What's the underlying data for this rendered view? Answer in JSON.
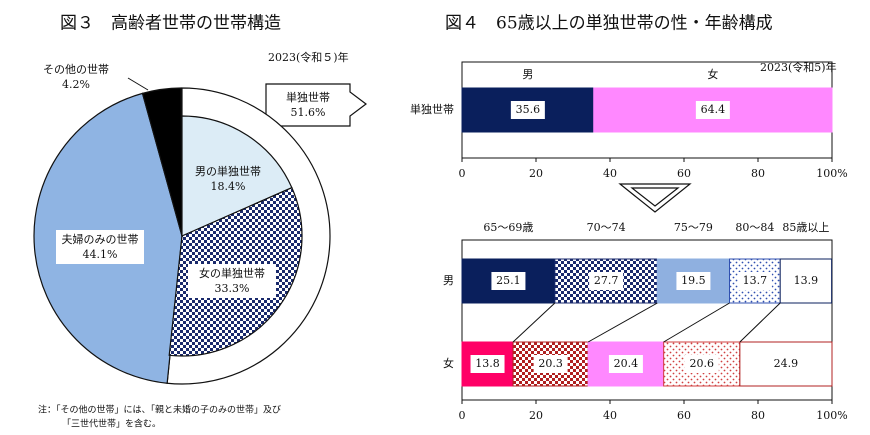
{
  "chart_data": [
    {
      "type": "pie",
      "title": "図３　高齢者世帯の世帯構造",
      "subtitle": "2023(令和５)年",
      "categories": [
        "単独世帯",
        "夫婦のみの世帯",
        "その他の世帯"
      ],
      "values": [
        51.6,
        44.1,
        4.2
      ],
      "value_labels": [
        "51.6%",
        "44.1%",
        "4.2%"
      ],
      "colors": [
        "#ffffff",
        "#8fb4e3",
        "#000000"
      ],
      "breakdown": {
        "categories": [
          "男の単独世帯",
          "女の単独世帯"
        ],
        "values": [
          18.4,
          33.3
        ],
        "value_labels": [
          "18.4%",
          "33.3%"
        ],
        "colors": [
          "#dcecf6",
          "#1a2a6c"
        ],
        "patterns": [
          "solid",
          "check"
        ]
      },
      "note": [
        "注：「その他の世帯」には、「親と未婚の子のみの世帯」及び",
        "「三世代世帯」を含む。"
      ]
    },
    {
      "type": "bar",
      "orientation": "horizontal",
      "stacked": true,
      "title": "図４　65歳以上の単独世帯の性・年齢構成",
      "subtitle": "2023(令和5)年",
      "categories": [
        "単独世帯"
      ],
      "series": [
        {
          "name": "男",
          "colors": [
            "#0a1f5c"
          ],
          "patterns": [
            "solid"
          ],
          "values": [
            35.6
          ]
        },
        {
          "name": "女",
          "colors": [
            "#ff88ff"
          ],
          "patterns": [
            "solid"
          ],
          "values": [
            64.4
          ]
        }
      ],
      "xlim": [
        0,
        100
      ],
      "xticks": [
        0,
        20,
        40,
        60,
        80,
        {
          "value": 100,
          "label": "100%"
        }
      ]
    },
    {
      "type": "bar",
      "orientation": "horizontal",
      "stacked": true,
      "categories": [
        "男",
        "女"
      ],
      "series": [
        {
          "name": "65～69歳",
          "colors": [
            "#0a1f5c",
            "#ff0066"
          ],
          "patterns": [
            "solid",
            "solid"
          ],
          "values": [
            25.1,
            13.8
          ]
        },
        {
          "name": "70～74",
          "colors": [
            "#1a2a6c",
            "#b02020"
          ],
          "patterns": [
            "check",
            "check"
          ],
          "values": [
            27.7,
            20.3
          ]
        },
        {
          "name": "75～79",
          "colors": [
            "#8fb0e0",
            "#ff88ff"
          ],
          "patterns": [
            "solid",
            "solid"
          ],
          "values": [
            19.5,
            20.4
          ]
        },
        {
          "name": "80～84",
          "colors": [
            "#3050b0",
            "#d04040"
          ],
          "patterns": [
            "dots",
            "dots"
          ],
          "values": [
            13.7,
            20.6
          ]
        },
        {
          "name": "85歳以上",
          "colors": [
            "#ffffff",
            "#ffffff"
          ],
          "patterns": [
            "solid",
            "solid"
          ],
          "values": [
            13.9,
            24.9
          ]
        }
      ],
      "xlim": [
        0,
        100
      ],
      "xticks": [
        0,
        20,
        40,
        60,
        80,
        {
          "value": 100,
          "label": "100%"
        }
      ]
    }
  ]
}
